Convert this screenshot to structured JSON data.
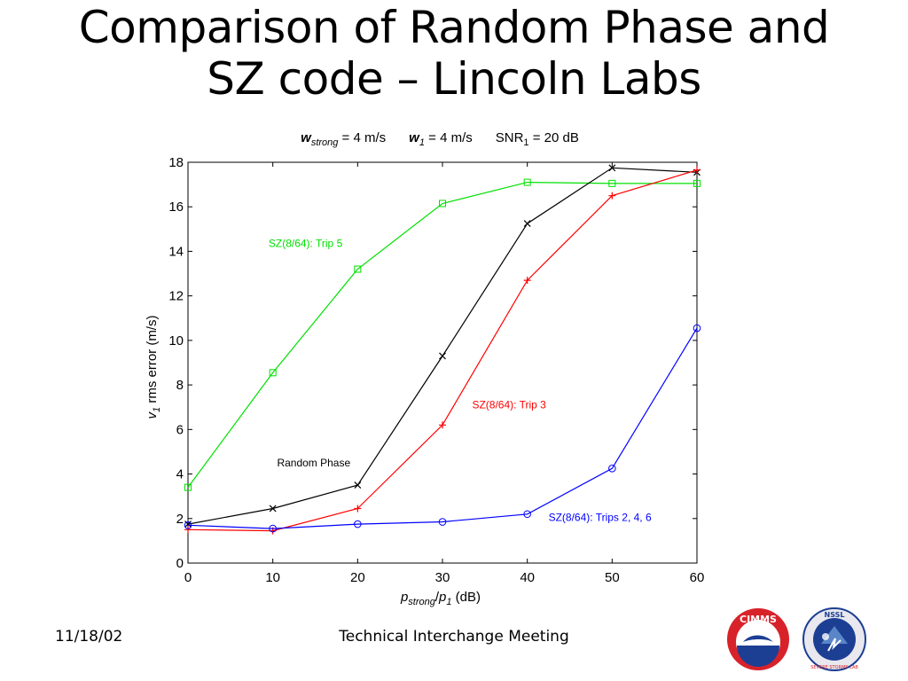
{
  "title": {
    "line1": "Comparison of Random Phase and",
    "line2": "SZ code – Lincoln Labs"
  },
  "footer": {
    "date": "11/18/02",
    "center": "Technical Interchange Meeting"
  },
  "logos": {
    "cimms": {
      "text": "CIMMS",
      "colors": {
        "red": "#d8222a",
        "blue": "#1c3f94"
      }
    },
    "nssl": {
      "text": "NSSL",
      "arc_text": "SEVERE STORMS LAB"
    }
  },
  "chart_data": {
    "type": "line",
    "title": {
      "w_strong_var": "w",
      "w_strong_sub": "strong",
      "w_strong_value": " = 4 m/s",
      "w1_var": "w",
      "w1_sub": "1",
      "w1_value": " = 4 m/s",
      "snr_var": "SNR",
      "snr_sub": "1",
      "snr_value": " = 20 dB"
    },
    "xlabel": {
      "var": "p",
      "sub": "strong",
      "slash": "/",
      "var2": "p",
      "sub2": "1",
      "unit": " (dB)"
    },
    "ylabel": {
      "var": "v",
      "sub": "1",
      "rest": "  rms error (m/s)"
    },
    "xlim": [
      0,
      60
    ],
    "ylim": [
      0,
      18
    ],
    "xticks": [
      0,
      10,
      20,
      30,
      40,
      50,
      60
    ],
    "yticks": [
      0,
      2,
      4,
      6,
      8,
      10,
      12,
      14,
      16,
      18
    ],
    "grid": false,
    "x": [
      0,
      10,
      20,
      30,
      40,
      50,
      60
    ],
    "series": [
      {
        "name": "SZ(8/64): Trip 5",
        "color": "#00e000",
        "marker": "square",
        "values": [
          3.4,
          8.55,
          13.2,
          16.15,
          17.1,
          17.05,
          17.05
        ],
        "label_at": [
          9.5,
          14.2
        ]
      },
      {
        "name": "Random Phase",
        "color": "#000000",
        "marker": "x",
        "values": [
          1.75,
          2.45,
          3.5,
          9.3,
          15.25,
          17.75,
          17.55
        ],
        "label_at": [
          10.5,
          4.35
        ]
      },
      {
        "name": "SZ(8/64): Trip 3",
        "color": "#ff0000",
        "marker": "plus",
        "values": [
          1.5,
          1.45,
          2.45,
          6.2,
          12.7,
          16.5,
          17.65
        ],
        "label_at": [
          33.5,
          6.95
        ]
      },
      {
        "name": "SZ(8/64): Trips 2, 4, 6",
        "color": "#0000ff",
        "marker": "circle",
        "values": [
          1.7,
          1.55,
          1.75,
          1.85,
          2.2,
          4.25,
          10.55
        ],
        "label_at": [
          42.5,
          1.9
        ]
      }
    ]
  }
}
